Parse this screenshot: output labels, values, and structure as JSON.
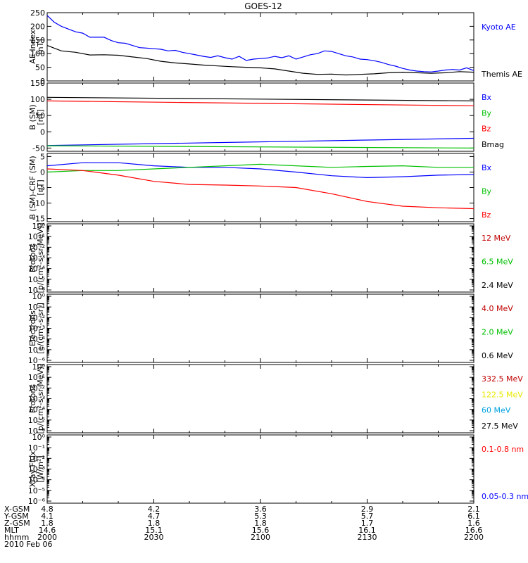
{
  "title": "GOES-12",
  "colors": {
    "axis": "#000000",
    "black": "#000000",
    "blue": "#0000ff",
    "green": "#00c000",
    "red": "#ff0000",
    "yellow": "#e8e800",
    "cyan": "#00a0e0"
  },
  "panels": [
    {
      "id": "ae",
      "ylabel": [
        "AE Index",
        "[nT]"
      ],
      "yticks": [
        "250",
        "200",
        "150",
        "100",
        "50",
        "0"
      ],
      "legend": [
        {
          "label": "Kyoto AE",
          "color": "#0000ff"
        },
        {
          "label": "Themis AE",
          "color": "#000000"
        }
      ]
    },
    {
      "id": "b",
      "ylabel": [
        "B (SM)",
        "[nT]"
      ],
      "yticks": [
        "150",
        "100",
        "50",
        "0",
        "-50"
      ],
      "legend": [
        {
          "label": "Bx",
          "color": "#0000ff"
        },
        {
          "label": "By",
          "color": "#00c000"
        },
        {
          "label": "Bz",
          "color": "#ff0000"
        },
        {
          "label": "Bmag",
          "color": "#000000"
        }
      ]
    },
    {
      "id": "bdiff",
      "ylabel": [
        "B (SM)-CRF (SM)",
        "[nT]"
      ],
      "yticks": [
        "5",
        "0",
        "-5",
        "-10",
        "-15"
      ],
      "legend": [
        {
          "label": "Bx",
          "color": "#0000ff"
        },
        {
          "label": "By",
          "color": "#00c000"
        },
        {
          "label": "Bz",
          "color": "#ff0000"
        }
      ]
    },
    {
      "id": "protons1",
      "ylabel": [
        "Protons",
        "[p/(cm²-s-sr-MeV)]"
      ],
      "yticks": [
        "10⁰",
        "10⁻¹",
        "10⁻²",
        "10⁻³",
        "10⁻⁴",
        "10⁻⁵",
        "10⁻⁶"
      ],
      "legend": [
        {
          "label": "12 MeV",
          "color": "#c00000"
        },
        {
          "label": "6.5 MeV",
          "color": "#00c000"
        },
        {
          "label": "2.4 MeV",
          "color": "#000000"
        }
      ]
    },
    {
      "id": "electrons",
      "ylabel": [
        "Electrons",
        "[e/(cm²-s-sr)]"
      ],
      "yticks": [
        "10⁰",
        "10⁻¹",
        "10⁻²",
        "10⁻³",
        "10⁻⁴",
        "10⁻⁵",
        "10⁻⁶"
      ],
      "legend": [
        {
          "label": "4.0 MeV",
          "color": "#c00000"
        },
        {
          "label": "2.0 MeV",
          "color": "#00c000"
        },
        {
          "label": "0.6 MeV",
          "color": "#000000"
        }
      ]
    },
    {
      "id": "protons2",
      "ylabel": [
        "Protons",
        "[p/(cm²-s-sr-MeV)]"
      ],
      "yticks": [
        "10⁰",
        "10⁻¹",
        "10⁻²",
        "10⁻³",
        "10⁻⁴",
        "10⁻⁵",
        "10⁻⁶"
      ],
      "legend": [
        {
          "label": "332.5 MeV",
          "color": "#c00000"
        },
        {
          "label": "122.5 MeV",
          "color": "#e8e800"
        },
        {
          "label": "60 MeV",
          "color": "#00a0e0"
        },
        {
          "label": "27.5 MeV",
          "color": "#000000"
        }
      ]
    },
    {
      "id": "xray",
      "ylabel": [
        "Xray Flux",
        "[W/m²]"
      ],
      "yticks": [
        "10⁰",
        "10⁻¹",
        "10⁻²",
        "10⁻³",
        "10⁻⁴",
        "10⁻⁵",
        "10⁻⁶"
      ],
      "legend": [
        {
          "label": "0.1-0.8 nm",
          "color": "#ff0000"
        },
        {
          "label": "0.05-0.3 nm",
          "color": "#0000ff"
        }
      ]
    }
  ],
  "footer": {
    "row_labels": [
      "X-GSM",
      "Y-GSM",
      "Z-GSM",
      "MLT",
      "hhmm",
      "2010 Feb 06"
    ],
    "columns": [
      [
        "4.8",
        "4.1",
        "1.8",
        "14.6",
        "2000"
      ],
      [
        "4.2",
        "4.7",
        "1.8",
        "15.1",
        "2030"
      ],
      [
        "3.6",
        "5.3",
        "1.8",
        "15.6",
        "2100"
      ],
      [
        "2.9",
        "5.7",
        "1.7",
        "16.1",
        "2130"
      ],
      [
        "2.1",
        "6.1",
        "1.6",
        "16.6",
        "2200"
      ]
    ]
  },
  "chart_data": [
    {
      "type": "line",
      "panel": "ae",
      "x_unit": "hhmm",
      "xlim": [
        2000,
        2200
      ],
      "ylim": [
        0,
        250
      ],
      "series": [
        {
          "name": "Kyoto AE",
          "color": "#0000ff",
          "x": [
            2000,
            2002,
            2004,
            2006,
            2008,
            2010,
            2012,
            2014,
            2016,
            2018,
            2020,
            2022,
            2024,
            2026,
            2028,
            2030,
            2032,
            2034,
            2036,
            2038,
            2040,
            2042,
            2044,
            2046,
            2048,
            2050,
            2052,
            2054,
            2056,
            2058,
            2100,
            2102,
            2104,
            2106,
            2108,
            2110,
            2112,
            2114,
            2116,
            2118,
            2120,
            2122,
            2124,
            2126,
            2128,
            2130,
            2132,
            2134,
            2136,
            2138,
            2140,
            2142,
            2144,
            2146,
            2148,
            2150,
            2152,
            2154,
            2156,
            2158,
            2200
          ],
          "y": [
            240,
            215,
            200,
            190,
            180,
            175,
            160,
            160,
            160,
            148,
            140,
            138,
            130,
            122,
            120,
            118,
            116,
            110,
            112,
            105,
            100,
            95,
            90,
            86,
            92,
            85,
            80,
            90,
            75,
            80,
            82,
            84,
            90,
            85,
            92,
            80,
            88,
            96,
            100,
            110,
            108,
            100,
            92,
            88,
            80,
            78,
            74,
            68,
            60,
            54,
            46,
            40,
            36,
            34,
            33,
            36,
            40,
            42,
            40,
            48,
            38
          ]
        },
        {
          "name": "Themis AE",
          "color": "#000000",
          "x": [
            2000,
            2004,
            2008,
            2012,
            2016,
            2020,
            2024,
            2028,
            2032,
            2036,
            2040,
            2044,
            2048,
            2052,
            2056,
            2100,
            2104,
            2108,
            2112,
            2116,
            2120,
            2124,
            2128,
            2132,
            2136,
            2140,
            2144,
            2148,
            2152,
            2156,
            2200
          ],
          "y": [
            130,
            110,
            105,
            95,
            96,
            94,
            88,
            82,
            72,
            66,
            62,
            58,
            55,
            52,
            50,
            48,
            44,
            36,
            28,
            24,
            25,
            22,
            24,
            26,
            30,
            32,
            30,
            28,
            30,
            34,
            32
          ]
        }
      ]
    },
    {
      "type": "line",
      "panel": "b",
      "x_unit": "hhmm",
      "xlim": [
        2000,
        2200
      ],
      "ylim": [
        -60,
        150
      ],
      "series": [
        {
          "name": "Bmag",
          "color": "#000000",
          "x": [
            2000,
            2200
          ],
          "y": [
            106,
            95
          ]
        },
        {
          "name": "Bz",
          "color": "#ff0000",
          "x": [
            2000,
            2200
          ],
          "y": [
            95,
            80
          ]
        },
        {
          "name": "Bx",
          "color": "#0000ff",
          "x": [
            2000,
            2200
          ],
          "y": [
            -42,
            -20
          ]
        },
        {
          "name": "By",
          "color": "#00c000",
          "x": [
            2000,
            2200
          ],
          "y": [
            -43,
            -50
          ]
        }
      ]
    },
    {
      "type": "line",
      "panel": "bdiff",
      "x_unit": "hhmm",
      "xlim": [
        2000,
        2200
      ],
      "ylim": [
        -16,
        6
      ],
      "series": [
        {
          "name": "Bx",
          "color": "#0000ff",
          "x": [
            2000,
            2010,
            2020,
            2030,
            2040,
            2050,
            2100,
            2110,
            2120,
            2130,
            2140,
            2150,
            2200
          ],
          "y": [
            2,
            3,
            3,
            2,
            1.5,
            1.5,
            1,
            0,
            -1.2,
            -1.8,
            -1.5,
            -1,
            -0.8
          ]
        },
        {
          "name": "By",
          "color": "#00c000",
          "x": [
            2000,
            2010,
            2020,
            2030,
            2040,
            2050,
            2100,
            2110,
            2120,
            2130,
            2140,
            2150,
            2200
          ],
          "y": [
            0,
            0.5,
            0.5,
            1,
            1.5,
            2,
            2.5,
            2,
            1.5,
            1.8,
            2,
            1.5,
            1.5
          ]
        },
        {
          "name": "Bz",
          "color": "#ff0000",
          "x": [
            2000,
            2010,
            2020,
            2030,
            2040,
            2050,
            2100,
            2110,
            2120,
            2130,
            2140,
            2150,
            2200
          ],
          "y": [
            1,
            0.5,
            -1,
            -3,
            -4,
            -4.2,
            -4.5,
            -5,
            -7,
            -9.5,
            -11,
            -11.5,
            -11.8
          ]
        }
      ]
    }
  ]
}
